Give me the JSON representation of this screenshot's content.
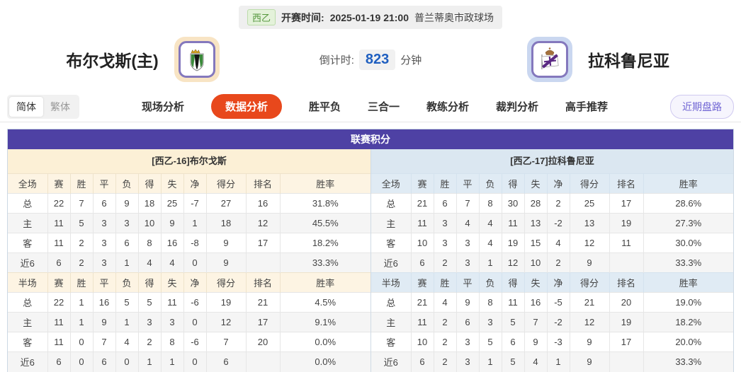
{
  "banner": {
    "league_badge": "西乙",
    "kickoff_label": "开赛时间:",
    "kickoff_time": "2025-01-19 21:00",
    "venue": "普兰蒂奥市政球场"
  },
  "header": {
    "home_team": "布尔戈斯(主)",
    "away_team": "拉科鲁尼亚",
    "countdown_label": "倒计时:",
    "countdown_value": "823",
    "countdown_unit": "分钟"
  },
  "nav": {
    "lang_simplified": "简体",
    "lang_traditional": "繁体",
    "tabs": [
      {
        "label": "现场分析"
      },
      {
        "label": "数据分析",
        "active": true
      },
      {
        "label": "胜平负"
      },
      {
        "label": "三合一"
      },
      {
        "label": "教练分析"
      },
      {
        "label": "裁判分析"
      },
      {
        "label": "高手推荐"
      }
    ],
    "recent_button": "近期盘路"
  },
  "colors": {
    "accent_purple": "#4e41a4",
    "active_tab_red": "#e8481c",
    "home_panel_cream": "#fcf0d6",
    "away_panel_blue": "#dbe7f1",
    "home_row_label_red": "#cc3333",
    "away_row_label_blue": "#3344cc",
    "countdown_blue": "#1f5fc0",
    "badge_green": "#55973d"
  },
  "table": {
    "title": "联赛积分",
    "left": {
      "team_header": "[西乙-16]布尔戈斯",
      "full_headers": [
        "全场",
        "赛",
        "胜",
        "平",
        "负",
        "得",
        "失",
        "净",
        "得分",
        "排名",
        "胜率"
      ],
      "full_rows": [
        [
          "总",
          "22",
          "7",
          "6",
          "9",
          "18",
          "25",
          "-7",
          "27",
          "16",
          "31.8%"
        ],
        [
          "主",
          "11",
          "5",
          "3",
          "3",
          "10",
          "9",
          "1",
          "18",
          "12",
          "45.5%"
        ],
        [
          "客",
          "11",
          "2",
          "3",
          "6",
          "8",
          "16",
          "-8",
          "9",
          "17",
          "18.2%"
        ],
        [
          "近6",
          "6",
          "2",
          "3",
          "1",
          "4",
          "4",
          "0",
          "9",
          "",
          "33.3%"
        ]
      ],
      "half_headers": [
        "半场",
        "赛",
        "胜",
        "平",
        "负",
        "得",
        "失",
        "净",
        "得分",
        "排名",
        "胜率"
      ],
      "half_rows": [
        [
          "总",
          "22",
          "1",
          "16",
          "5",
          "5",
          "11",
          "-6",
          "19",
          "21",
          "4.5%"
        ],
        [
          "主",
          "11",
          "1",
          "9",
          "1",
          "3",
          "3",
          "0",
          "12",
          "17",
          "9.1%"
        ],
        [
          "客",
          "11",
          "0",
          "7",
          "4",
          "2",
          "8",
          "-6",
          "7",
          "20",
          "0.0%"
        ],
        [
          "近6",
          "6",
          "0",
          "6",
          "0",
          "1",
          "1",
          "0",
          "6",
          "",
          "0.0%"
        ]
      ]
    },
    "right": {
      "team_header": "[西乙-17]拉科鲁尼亚",
      "full_headers": [
        "全场",
        "赛",
        "胜",
        "平",
        "负",
        "得",
        "失",
        "净",
        "得分",
        "排名",
        "胜率"
      ],
      "full_rows": [
        [
          "总",
          "21",
          "6",
          "7",
          "8",
          "30",
          "28",
          "2",
          "25",
          "17",
          "28.6%"
        ],
        [
          "主",
          "11",
          "3",
          "4",
          "4",
          "11",
          "13",
          "-2",
          "13",
          "19",
          "27.3%"
        ],
        [
          "客",
          "10",
          "3",
          "3",
          "4",
          "19",
          "15",
          "4",
          "12",
          "11",
          "30.0%"
        ],
        [
          "近6",
          "6",
          "2",
          "3",
          "1",
          "12",
          "10",
          "2",
          "9",
          "",
          "33.3%"
        ]
      ],
      "half_headers": [
        "半场",
        "赛",
        "胜",
        "平",
        "负",
        "得",
        "失",
        "净",
        "得分",
        "排名",
        "胜率"
      ],
      "half_rows": [
        [
          "总",
          "21",
          "4",
          "9",
          "8",
          "11",
          "16",
          "-5",
          "21",
          "20",
          "19.0%"
        ],
        [
          "主",
          "11",
          "2",
          "6",
          "3",
          "5",
          "7",
          "-2",
          "12",
          "19",
          "18.2%"
        ],
        [
          "客",
          "10",
          "2",
          "3",
          "5",
          "6",
          "9",
          "-3",
          "9",
          "17",
          "20.0%"
        ],
        [
          "近6",
          "6",
          "2",
          "3",
          "1",
          "5",
          "4",
          "1",
          "9",
          "",
          "33.3%"
        ]
      ]
    }
  }
}
